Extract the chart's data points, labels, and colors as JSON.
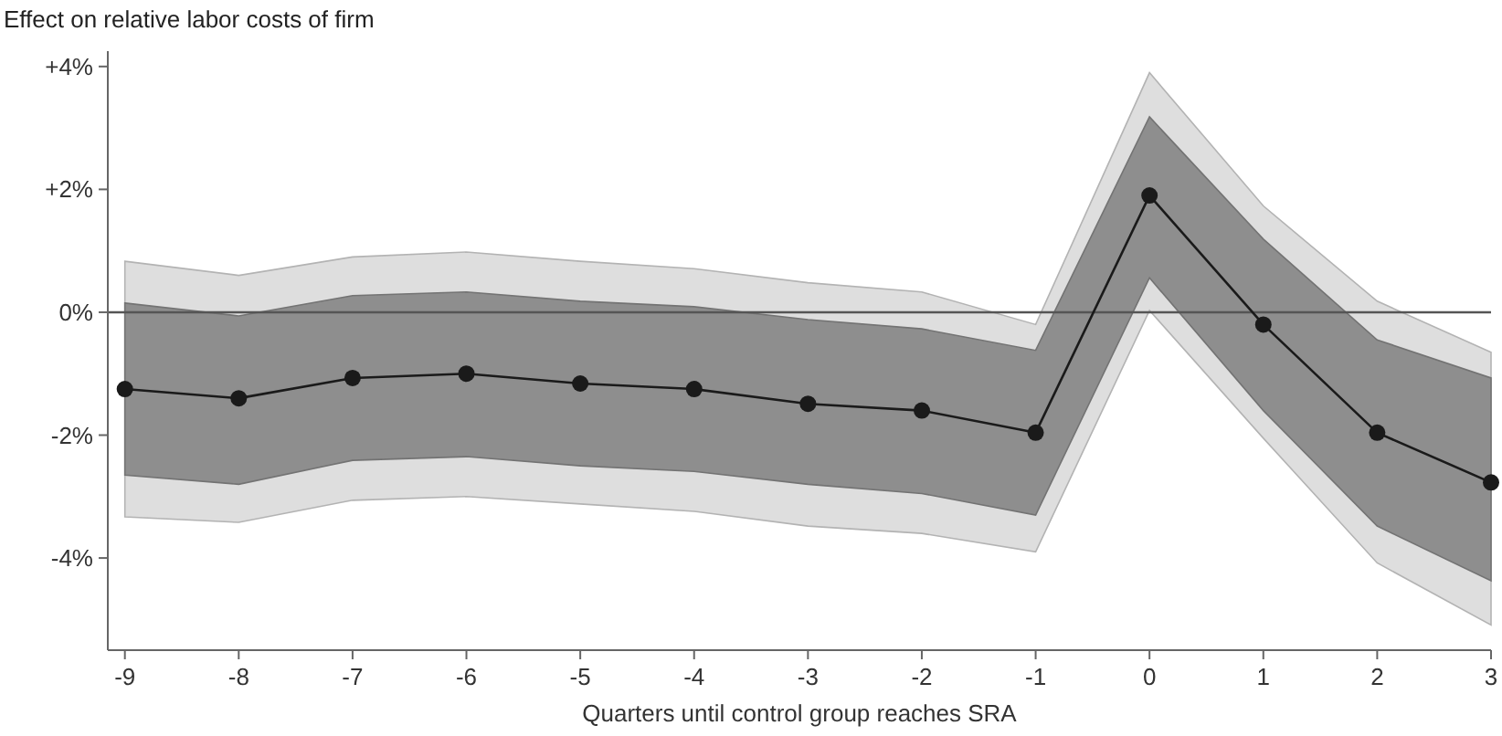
{
  "chart_data": {
    "type": "line",
    "title": "Effect on relative labor costs of firm",
    "xlabel": "Quarters until control group reaches SRA",
    "x": [
      -9,
      -8,
      -7,
      -6,
      -5,
      -4,
      -3,
      -2,
      -1,
      0,
      1,
      2,
      3
    ],
    "series": [
      {
        "color": "#dedede",
        "values": [
          null,
          null,
          null,
          null,
          null,
          null,
          null,
          null,
          null,
          null,
          null,
          null,
          null
        ],
        "lower": [
          -3.33,
          -3.42,
          -3.06,
          -3.0,
          -3.12,
          -3.24,
          -3.48,
          -3.6,
          -3.9,
          0.03,
          -2.05,
          -4.08,
          -5.09
        ],
        "upper": [
          0.83,
          0.6,
          0.9,
          0.98,
          0.83,
          0.71,
          0.48,
          0.33,
          -0.2,
          3.9,
          1.73,
          0.18,
          -0.65
        ]
      },
      {
        "color": "#8e8e8e",
        "values": [
          null,
          null,
          null,
          null,
          null,
          null,
          null,
          null,
          null,
          null,
          null,
          null,
          null
        ],
        "lower": [
          -2.65,
          -2.8,
          -2.41,
          -2.35,
          -2.5,
          -2.59,
          -2.8,
          -2.95,
          -3.3,
          0.56,
          -1.6,
          -3.48,
          -4.37
        ],
        "upper": [
          0.15,
          -0.06,
          0.27,
          0.33,
          0.18,
          0.09,
          -0.12,
          -0.27,
          -0.62,
          3.18,
          1.19,
          -0.45,
          -1.07
        ]
      },
      {
        "color": "#1a1a1a",
        "values": [
          -1.25,
          -1.4,
          -1.07,
          -1.0,
          -1.16,
          -1.25,
          -1.49,
          -1.6,
          -1.96,
          1.9,
          -0.2,
          -1.96,
          -2.77
        ]
      }
    ],
    "xlim": [
      -9.15,
      3
    ],
    "xticks": [
      -9,
      -8,
      -7,
      -6,
      -5,
      -4,
      -3,
      -2,
      -1,
      0,
      1,
      2,
      3
    ],
    "ylim": [
      -5.5,
      4.25
    ],
    "yticks": [
      {
        "value": 4,
        "label": "+4%"
      },
      {
        "value": 2,
        "label": "+2%"
      },
      {
        "value": 0,
        "label": "0%"
      },
      {
        "value": -2,
        "label": "-2%"
      },
      {
        "value": -4,
        "label": "-4%"
      }
    ],
    "ref_lines": [
      {
        "axis": "y",
        "value": 0,
        "label": null,
        "color": "#555555"
      }
    ],
    "marker": "circle",
    "line_style": "solid",
    "grid": false
  }
}
